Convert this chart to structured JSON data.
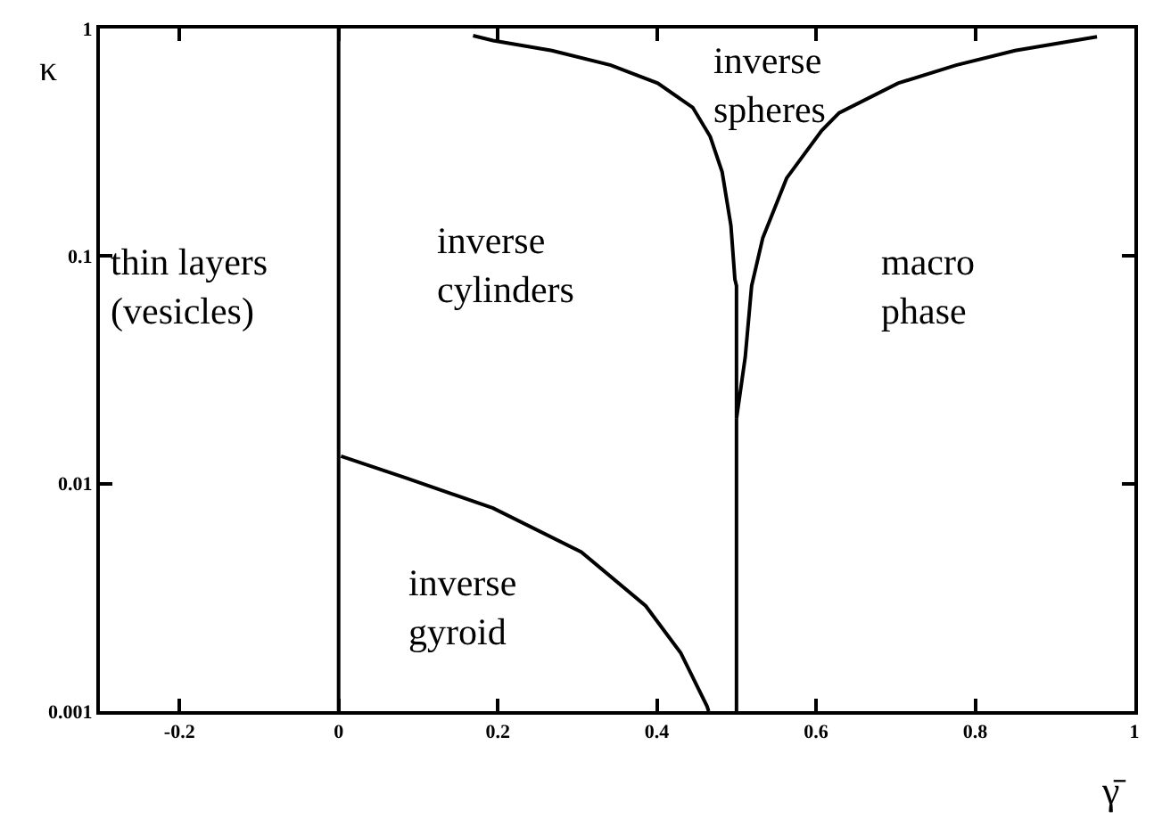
{
  "chart_data": {
    "type": "line",
    "xlabel": "γ̄",
    "ylabel": "κ",
    "log": "y",
    "xlim": [
      -0.3,
      1
    ],
    "xticks": [
      -0.2,
      0,
      0.2,
      0.4,
      0.6,
      0.8,
      1
    ],
    "ylim": [
      0.001,
      1
    ],
    "yticks": [
      0.001,
      0.01,
      0.1,
      1
    ],
    "marker": "none",
    "line_style": "solid",
    "ref_lines": [
      {
        "axis": "x",
        "value": 0,
        "color": "#000000"
      }
    ],
    "series": [
      {
        "color": "#000000",
        "x": [
          0.169,
          0.194,
          0.268,
          0.342,
          0.401,
          0.445,
          0.467,
          0.482,
          0.493,
          0.498,
          0.5,
          0.5,
          0.5,
          0.511,
          0.519,
          0.533,
          0.563,
          0.607,
          0.629,
          0.703,
          0.776,
          0.85,
          0.953
        ],
        "values": [
          0.93,
          0.886,
          0.8,
          0.69,
          0.575,
          0.45,
          0.335,
          0.234,
          0.136,
          0.079,
          0.074,
          0.036,
          0.0193,
          0.036,
          0.074,
          0.12,
          0.22,
          0.356,
          0.426,
          0.575,
          0.69,
          0.8,
          0.92
        ]
      },
      {
        "color": "#000000",
        "x": [
          0.5,
          0.5
        ],
        "values": [
          0.001,
          0.0193
        ]
      },
      {
        "color": "#000000",
        "x": [
          0.003,
          0.084,
          0.194,
          0.305,
          0.386,
          0.43,
          0.463,
          0.465
        ],
        "values": [
          0.0132,
          0.0106,
          0.0078,
          0.005,
          0.0029,
          0.0018,
          0.00105,
          0.001
        ]
      }
    ],
    "annotations": [
      "thin layers\n(vesicles)",
      "inverse\ncylinders",
      "inverse\nspheres",
      "macro\nphase",
      "inverse\ngyroid"
    ]
  }
}
